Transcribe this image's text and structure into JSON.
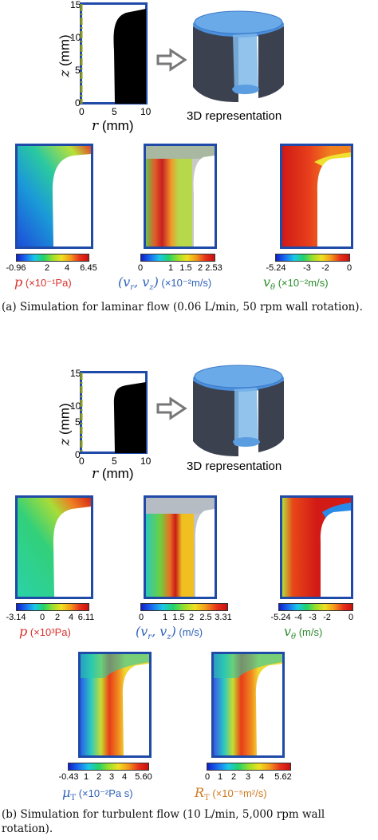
{
  "colors": {
    "frame": "#1f4aa8",
    "axis_dash": "#8c9a1e",
    "red_label": "#d9302a",
    "blue_label": "#2f62b8",
    "green_label": "#2d8c2d",
    "orange_label": "#d07a22"
  },
  "section_a": {
    "geometry": {
      "z_label": "z (mm)",
      "r_label": "r (mm)",
      "z_ticks": [
        "15",
        "10",
        "5",
        "0"
      ],
      "r_ticks": [
        "0",
        "5",
        "10"
      ],
      "rep_label": "3D representation"
    },
    "colorbars": [
      {
        "ticks": [
          "-0.96",
          "2",
          "4",
          "6.45"
        ],
        "symbol": "p",
        "unit": " (×10⁻¹Pa)"
      },
      {
        "ticks": [
          "0",
          "1",
          "1.5",
          "2",
          "2.53"
        ],
        "symbol": "(v",
        "unit": " (×10⁻²m/s)"
      },
      {
        "ticks": [
          "-5.24",
          "-3",
          "-2",
          "0"
        ],
        "symbol": "v",
        "unit": " (×10⁻²m/s)"
      }
    ],
    "caption": "(a) Simulation for laminar flow (0.06 L/min, 50 rpm wall rotation)."
  },
  "section_b": {
    "geometry": {
      "z_label": "z (mm)",
      "r_label": "r (mm)",
      "z_ticks": [
        "15",
        "10",
        "5",
        "0"
      ],
      "r_ticks": [
        "0",
        "5",
        "10"
      ],
      "rep_label": "3D representation"
    },
    "colorbars": [
      {
        "ticks": [
          "-3.14",
          "0",
          "2",
          "4",
          "6.11"
        ],
        "symbol": "p",
        "unit": " (×10³Pa)"
      },
      {
        "ticks": [
          "0",
          "1",
          "1.5",
          "2",
          "2.5",
          "3.31"
        ],
        "symbol": "(v",
        "unit": " (m/s)"
      },
      {
        "ticks": [
          "-5.24",
          "-4",
          "-3",
          "-2",
          "0"
        ],
        "symbol": "v",
        "unit": " (m/s)"
      },
      {
        "ticks": [
          "-0.43",
          "1",
          "2",
          "3",
          "4",
          "5.60"
        ],
        "symbol": "μ",
        "unit": " (×10⁻²Pa s)"
      },
      {
        "ticks": [
          "0",
          "1",
          "2",
          "3",
          "4",
          "5.62"
        ],
        "symbol": "R",
        "unit": " (×10⁻⁵m²/s)"
      }
    ],
    "caption": "(b) Simulation for turbulent flow (10 L/min, 5,000 rpm wall rotation)."
  }
}
